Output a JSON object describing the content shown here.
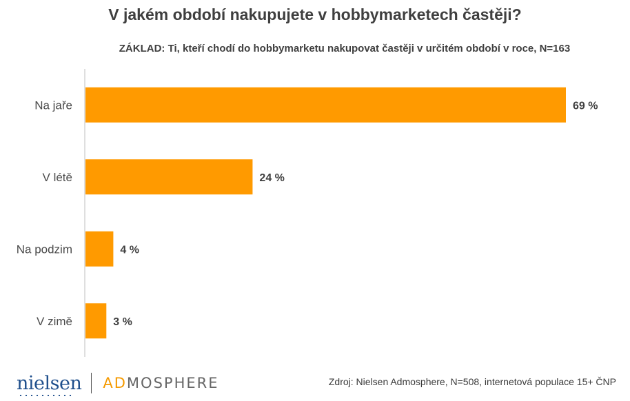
{
  "title": "V jakém období nakupujete v hobbymarketech častěji?",
  "subtitle": "ZÁKLAD: Ti, kteří chodí do hobbymarketu nakupovat častěji v určitém období v roce, N=163",
  "source": "Zdroj: Nielsen Admosphere, N=508, internetová populace 15+ ČNP",
  "logo": {
    "brand1": "nielsen",
    "brand2_highlight": "AD",
    "brand2_rest": "MOSPHERE"
  },
  "colors": {
    "bar": "#FF9A00",
    "axis": "#BFBFBF"
  },
  "chart_data": {
    "type": "bar",
    "orientation": "horizontal",
    "categories": [
      "Na jaře",
      "V létě",
      "Na podzim",
      "V zimě"
    ],
    "values": [
      69,
      24,
      4,
      3
    ],
    "value_labels": [
      "69 %",
      "24 %",
      "4 %",
      "3 %"
    ],
    "unit": "%",
    "xlim": [
      0,
      69
    ],
    "grid": false,
    "legend": "none"
  }
}
